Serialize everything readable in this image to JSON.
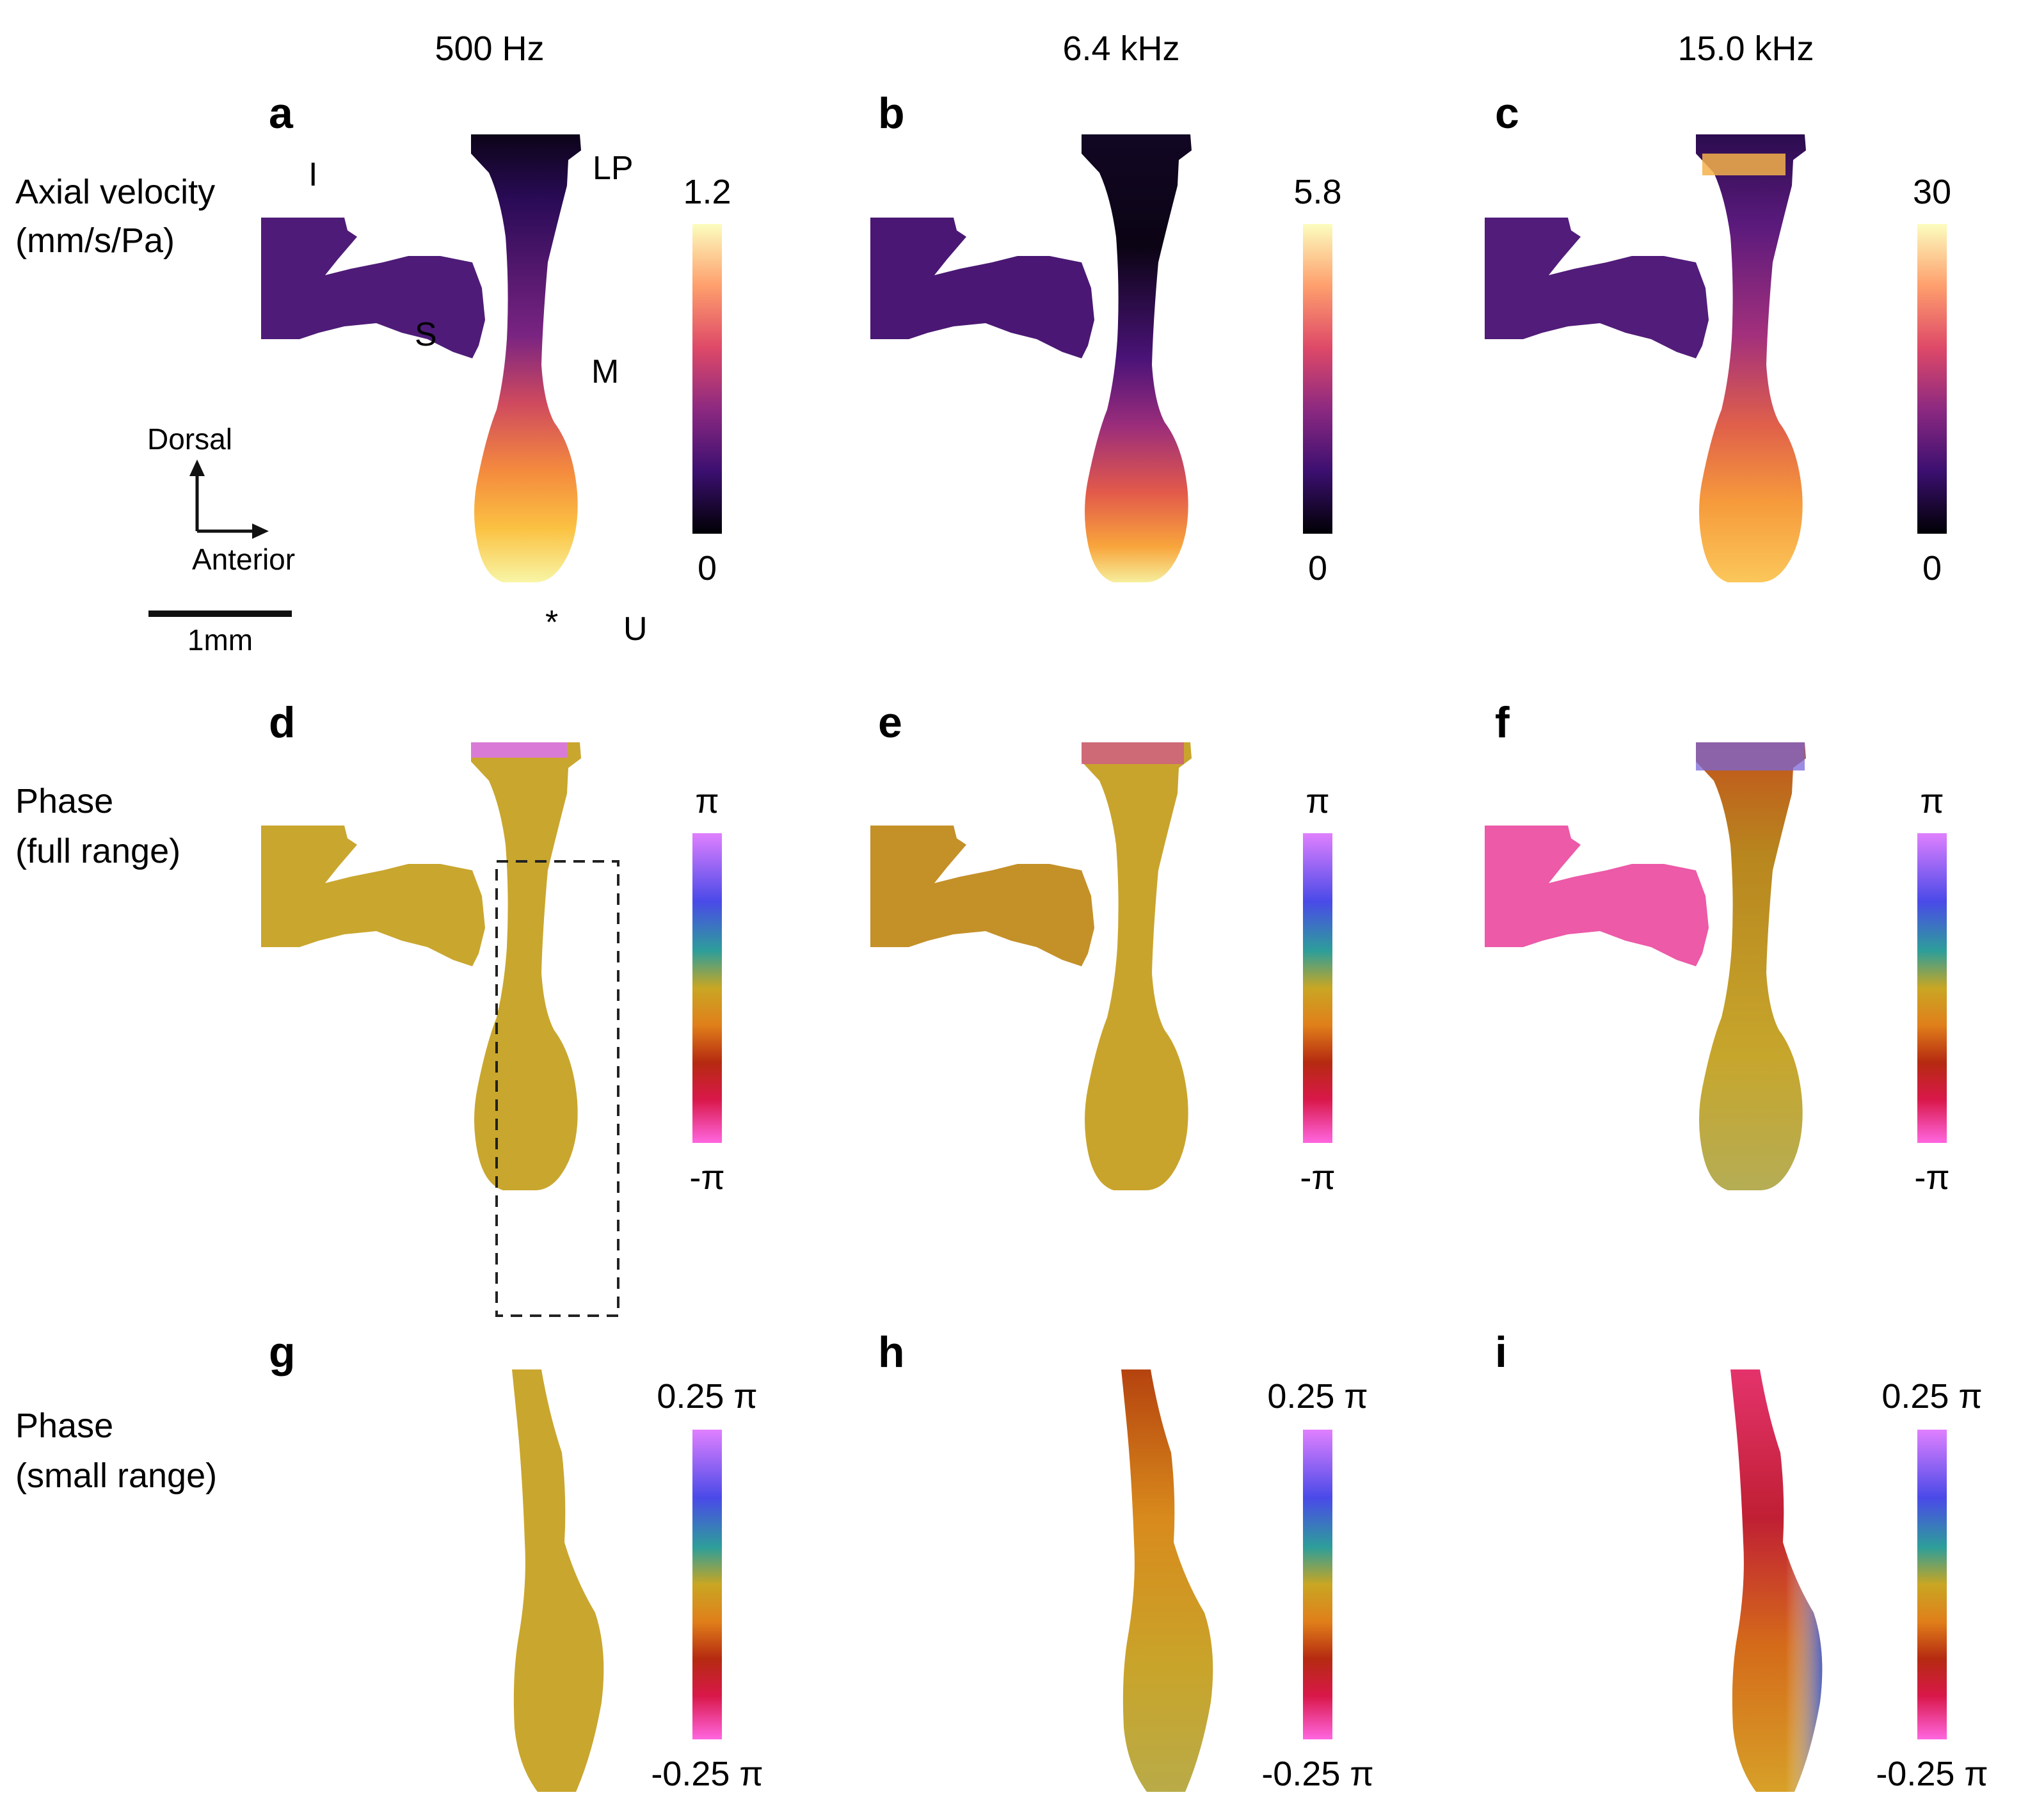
{
  "columns": [
    "500 Hz",
    "6.4 kHz",
    "15.0 kHz"
  ],
  "rows": [
    {
      "label_line1": "Axial velocity",
      "label_line2": "(mm/s/Pa)"
    },
    {
      "label_line1": "Phase",
      "label_line2": "(full range)"
    },
    {
      "label_line1": "Phase",
      "label_line2": "(small range)"
    }
  ],
  "panels": [
    "a",
    "b",
    "c",
    "d",
    "e",
    "f",
    "g",
    "h",
    "i"
  ],
  "anatomy_labels": {
    "I": "I",
    "S": "S",
    "LP": "LP",
    "M": "M",
    "U": "U",
    "umbo_marker": "*"
  },
  "orientation": {
    "dorsal": "Dorsal",
    "anterior": "Anterior"
  },
  "scale_bar": {
    "label": "1mm"
  },
  "colorbars": {
    "velocity": [
      {
        "max": "1.2",
        "min": "0"
      },
      {
        "max": "5.8",
        "min": "0"
      },
      {
        "max": "30",
        "min": "0"
      }
    ],
    "phase_full": {
      "max": "π",
      "min": "-π"
    },
    "phase_small": {
      "max": "0.25 π",
      "min": "-0.25 π"
    }
  },
  "colors": {
    "velocity_map": [
      "#000004",
      "#3b0f70",
      "#8c2981",
      "#de4968",
      "#fe9f6d",
      "#fcfdbf"
    ],
    "phase_map": [
      "#ff66e0",
      "#d9184a",
      "#b52a10",
      "#e07f1a",
      "#c9a623",
      "#2d9e9a",
      "#4a4ae8",
      "#e080ff"
    ],
    "phase_fill": "#c9a62e"
  }
}
